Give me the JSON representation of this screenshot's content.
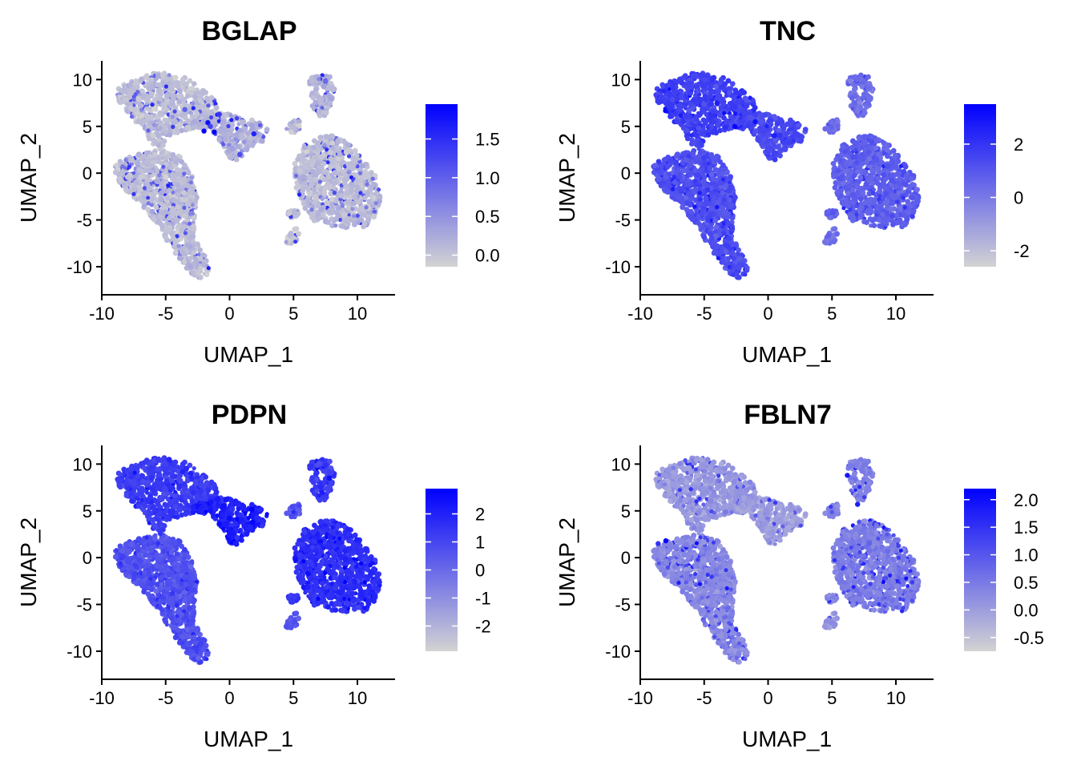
{
  "chart_data": [
    {
      "type": "scatter",
      "title": "BGLAP",
      "xlabel": "UMAP_1",
      "ylabel": "UMAP_2",
      "xlim": [
        -10,
        13
      ],
      "ylim": [
        -13,
        12
      ],
      "xticks": [
        -10,
        -5,
        0,
        5,
        10
      ],
      "yticks": [
        -10,
        -5,
        0,
        5,
        10
      ],
      "color_scale": {
        "low": "#d3d3d3",
        "high": "#0000ff",
        "min": -0.15,
        "max": 1.95,
        "ticks": [
          0.0,
          0.5,
          1.0,
          1.5
        ],
        "tick_labels": [
          "0.0",
          "0.5",
          "1.0",
          "1.5"
        ]
      },
      "background_level": 0.05,
      "highlights": [
        {
          "x": -2.0,
          "y": 4.5,
          "v": 1.9
        },
        {
          "x": -1.2,
          "y": 4.4,
          "v": 1.9
        },
        {
          "x": -1.7,
          "y": 5.4,
          "v": 1.8
        },
        {
          "x": 1.9,
          "y": 4.2,
          "v": 1.6
        },
        {
          "x": -0.8,
          "y": 6.3,
          "v": 1.4
        },
        {
          "x": -1.5,
          "y": 5.0,
          "v": 1.3
        },
        {
          "x": 0.8,
          "y": 2.0,
          "v": 1.2
        },
        {
          "x": -3.5,
          "y": 6.8,
          "v": 1.0
        },
        {
          "x": 7.5,
          "y": 9.8,
          "v": 0.9
        }
      ],
      "gene_profile": {
        "c1": 0.1,
        "c2": 0.1,
        "c3": 0.15,
        "c4": 0.08,
        "c5": 0.15,
        "c6": 0.1,
        "c7": 0.1
      },
      "speckle": {
        "density": 0.22,
        "amp": 0.75
      }
    },
    {
      "type": "scatter",
      "title": "TNC",
      "xlabel": "UMAP_1",
      "ylabel": "UMAP_2",
      "xlim": [
        -10,
        13
      ],
      "ylim": [
        -13,
        12
      ],
      "xticks": [
        -10,
        -5,
        0,
        5,
        10
      ],
      "yticks": [
        -10,
        -5,
        0,
        5,
        10
      ],
      "color_scale": {
        "low": "#d3d3d3",
        "high": "#0000ff",
        "min": -2.6,
        "max": 3.5,
        "ticks": [
          -2,
          0,
          2
        ],
        "tick_labels": [
          "-2",
          "0",
          "2"
        ]
      },
      "background_level": 0.45,
      "highlights": [
        {
          "x": -2.6,
          "y": 5.0,
          "v": 3.3
        },
        {
          "x": -1.0,
          "y": 5.5,
          "v": 3.0
        },
        {
          "x": -4.0,
          "y": 7.5,
          "v": 2.7
        },
        {
          "x": 0.5,
          "y": 4.0,
          "v": 2.6
        }
      ],
      "gene_profile": {
        "c1": 0.62,
        "c2": 0.7,
        "c3": 0.65,
        "c4": 0.48,
        "c5": 0.48,
        "c6": 0.55,
        "c7": 0.55
      },
      "speckle": {
        "density": 0.18,
        "amp": 0.25
      }
    },
    {
      "type": "scatter",
      "title": "PDPN",
      "xlabel": "UMAP_1",
      "ylabel": "UMAP_2",
      "xlim": [
        -10,
        13
      ],
      "ylim": [
        -13,
        12
      ],
      "xticks": [
        -10,
        -5,
        0,
        5,
        10
      ],
      "yticks": [
        -10,
        -5,
        0,
        5,
        10
      ],
      "color_scale": {
        "low": "#d3d3d3",
        "high": "#0000ff",
        "min": -2.9,
        "max": 2.9,
        "ticks": [
          -2,
          -1,
          0,
          1,
          2
        ],
        "tick_labels": [
          "-2",
          "-1",
          "0",
          "1",
          "2"
        ]
      },
      "background_level": 0.6,
      "highlights": [
        {
          "x": 1.8,
          "y": 3.8,
          "v": 2.8
        },
        {
          "x": 0.0,
          "y": 4.2,
          "v": 2.6
        },
        {
          "x": 7.8,
          "y": 8.5,
          "v": 2.5
        },
        {
          "x": -1.5,
          "y": 5.0,
          "v": 2.4
        }
      ],
      "gene_profile": {
        "c1": 0.62,
        "c2": 0.72,
        "c3": 0.85,
        "c4": 0.6,
        "c5": 0.72,
        "c6": 0.78,
        "c7": 0.75
      },
      "speckle": {
        "density": 0.18,
        "amp": 0.2
      }
    },
    {
      "type": "scatter",
      "title": "FBLN7",
      "xlabel": "UMAP_1",
      "ylabel": "UMAP_2",
      "xlim": [
        -10,
        13
      ],
      "ylim": [
        -13,
        12
      ],
      "xticks": [
        -10,
        -5,
        0,
        5,
        10
      ],
      "yticks": [
        -10,
        -5,
        0,
        5,
        10
      ],
      "color_scale": {
        "low": "#d3d3d3",
        "high": "#0000ff",
        "min": -0.75,
        "max": 2.2,
        "ticks": [
          -0.5,
          0.0,
          0.5,
          1.0,
          1.5,
          2.0
        ],
        "tick_labels": [
          "-0.5",
          "0.0",
          "0.5",
          "1.0",
          "1.5",
          "2.0"
        ]
      },
      "background_level": 0.3,
      "highlights": [
        {
          "x": -8.0,
          "y": 1.8,
          "v": 2.1
        },
        {
          "x": 6.2,
          "y": 8.8,
          "v": 1.9
        },
        {
          "x": 7.0,
          "y": 5.7,
          "v": 1.8
        },
        {
          "x": -8.6,
          "y": 1.5,
          "v": 1.5
        }
      ],
      "gene_profile": {
        "c1": 0.35,
        "c2": 0.28,
        "c3": 0.25,
        "c4": 0.38,
        "c5": 0.38,
        "c6": 0.4,
        "c7": 0.35
      },
      "speckle": {
        "density": 0.22,
        "amp": 0.5
      }
    }
  ]
}
